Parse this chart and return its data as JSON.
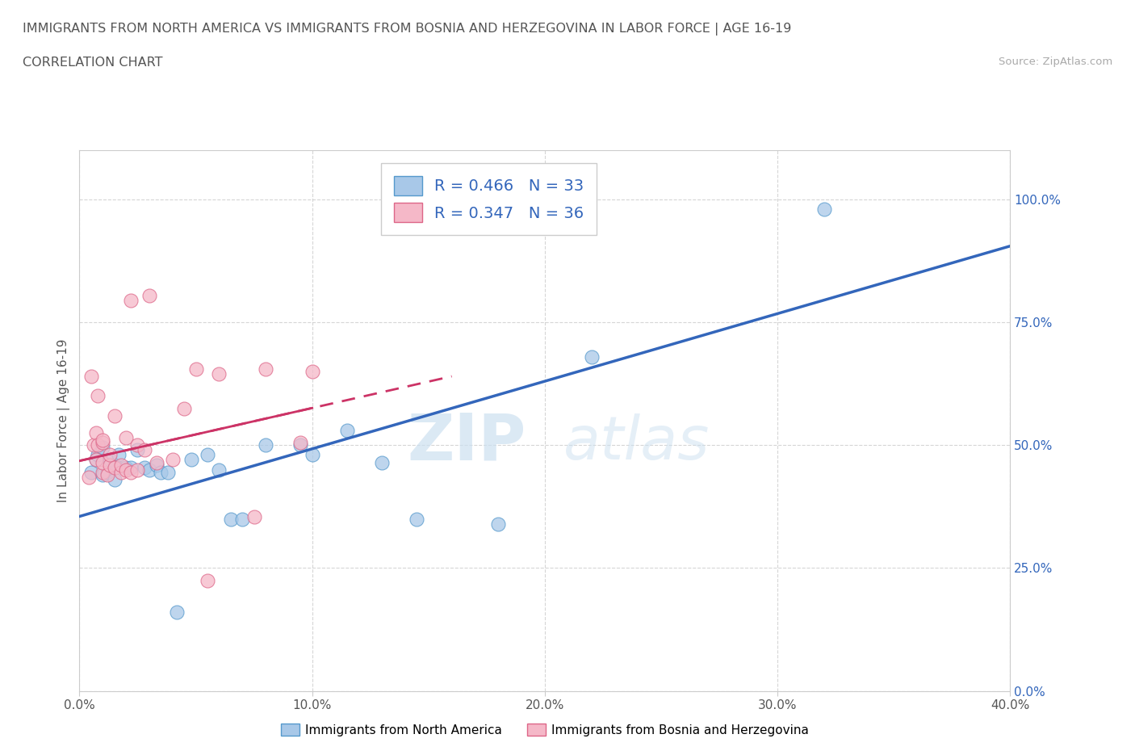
{
  "title_line1": "IMMIGRANTS FROM NORTH AMERICA VS IMMIGRANTS FROM BOSNIA AND HERZEGOVINA IN LABOR FORCE | AGE 16-19",
  "title_line2": "CORRELATION CHART",
  "source": "Source: ZipAtlas.com",
  "xlabel": "",
  "ylabel": "In Labor Force | Age 16-19",
  "xlim": [
    0.0,
    0.4
  ],
  "ylim": [
    0.0,
    1.1
  ],
  "xticks": [
    0.0,
    0.1,
    0.2,
    0.3,
    0.4
  ],
  "xticklabels": [
    "0.0%",
    "10.0%",
    "20.0%",
    "30.0%",
    "40.0%"
  ],
  "yticks": [
    0.0,
    0.25,
    0.5,
    0.75,
    1.0
  ],
  "yticklabels": [
    "0.0%",
    "25.0%",
    "50.0%",
    "75.0%",
    "100.0%"
  ],
  "blue_color": "#a8c8e8",
  "blue_edge_color": "#5599cc",
  "blue_line_color": "#3366bb",
  "pink_color": "#f5b8c8",
  "pink_edge_color": "#dd6688",
  "pink_line_color": "#cc3366",
  "R_blue": 0.466,
  "N_blue": 33,
  "R_pink": 0.347,
  "N_pink": 36,
  "legend_label_blue": "Immigrants from North America",
  "legend_label_pink": "Immigrants from Bosnia and Herzegovina",
  "watermark_zip": "ZIP",
  "watermark_atlas": "atlas",
  "blue_x": [
    0.005,
    0.007,
    0.008,
    0.01,
    0.01,
    0.012,
    0.013,
    0.015,
    0.015,
    0.017,
    0.02,
    0.022,
    0.025,
    0.028,
    0.03,
    0.033,
    0.035,
    0.038,
    0.042,
    0.048,
    0.055,
    0.06,
    0.065,
    0.07,
    0.08,
    0.095,
    0.1,
    0.115,
    0.13,
    0.145,
    0.18,
    0.22,
    0.32
  ],
  "blue_y": [
    0.445,
    0.47,
    0.48,
    0.495,
    0.44,
    0.445,
    0.47,
    0.43,
    0.46,
    0.48,
    0.455,
    0.455,
    0.49,
    0.455,
    0.45,
    0.46,
    0.445,
    0.445,
    0.16,
    0.47,
    0.48,
    0.45,
    0.35,
    0.35,
    0.5,
    0.5,
    0.48,
    0.53,
    0.465,
    0.35,
    0.34,
    0.68,
    0.98
  ],
  "pink_x": [
    0.004,
    0.005,
    0.006,
    0.007,
    0.007,
    0.008,
    0.008,
    0.01,
    0.01,
    0.01,
    0.01,
    0.012,
    0.013,
    0.013,
    0.015,
    0.015,
    0.018,
    0.018,
    0.02,
    0.02,
    0.022,
    0.022,
    0.025,
    0.025,
    0.028,
    0.03,
    0.033,
    0.04,
    0.045,
    0.05,
    0.055,
    0.06,
    0.075,
    0.08,
    0.095,
    0.1
  ],
  "pink_y": [
    0.435,
    0.64,
    0.5,
    0.47,
    0.525,
    0.5,
    0.6,
    0.445,
    0.465,
    0.505,
    0.51,
    0.44,
    0.46,
    0.48,
    0.455,
    0.56,
    0.445,
    0.46,
    0.45,
    0.515,
    0.445,
    0.795,
    0.45,
    0.5,
    0.49,
    0.805,
    0.465,
    0.47,
    0.575,
    0.655,
    0.225,
    0.645,
    0.355,
    0.655,
    0.505,
    0.65
  ],
  "blue_line_x0": 0.0,
  "blue_line_y0": 0.355,
  "blue_line_x1": 0.4,
  "blue_line_y1": 0.905,
  "pink_line_x0": 0.0,
  "pink_line_y0": 0.468,
  "pink_line_x1": 0.16,
  "pink_line_y1": 0.64
}
